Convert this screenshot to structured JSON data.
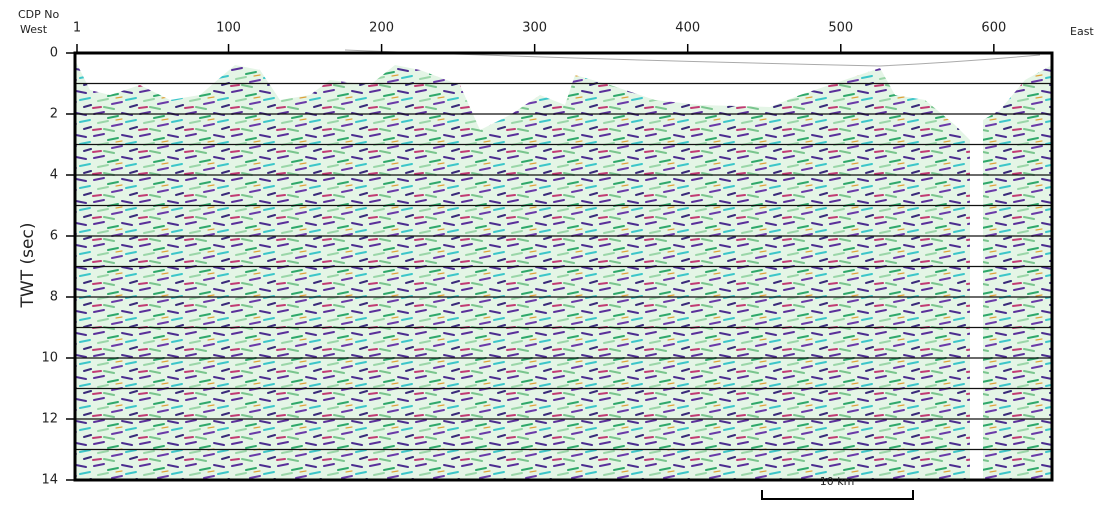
{
  "chart_data": {
    "type": "seismic",
    "x_label_lines": [
      "CDP No",
      "West"
    ],
    "x_end_label": "East",
    "ylabel": "TWT (sec)",
    "xlim": [
      1,
      638
    ],
    "xticks": [
      1,
      100,
      200,
      300,
      400,
      500,
      600
    ],
    "ylim": [
      14,
      0
    ],
    "yticks": [
      0,
      2,
      4,
      6,
      8,
      10,
      12,
      14
    ],
    "gridlines": [
      1,
      2,
      3,
      4,
      5,
      6,
      7,
      8,
      9,
      10,
      11,
      12,
      13
    ],
    "scale_bar": "10 km"
  }
}
